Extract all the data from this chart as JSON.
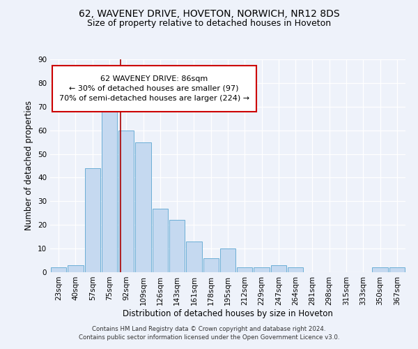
{
  "title1": "62, WAVENEY DRIVE, HOVETON, NORWICH, NR12 8DS",
  "title2": "Size of property relative to detached houses in Hoveton",
  "xlabel": "Distribution of detached houses by size in Hoveton",
  "ylabel": "Number of detached properties",
  "categories": [
    "23sqm",
    "40sqm",
    "57sqm",
    "75sqm",
    "92sqm",
    "109sqm",
    "126sqm",
    "143sqm",
    "161sqm",
    "178sqm",
    "195sqm",
    "212sqm",
    "229sqm",
    "247sqm",
    "264sqm",
    "281sqm",
    "298sqm",
    "315sqm",
    "333sqm",
    "350sqm",
    "367sqm"
  ],
  "values": [
    2,
    3,
    44,
    70,
    60,
    55,
    27,
    22,
    13,
    6,
    10,
    2,
    2,
    3,
    2,
    0,
    0,
    0,
    0,
    2,
    2
  ],
  "bar_color": "#c5d9f0",
  "bar_edge_color": "#6baed6",
  "vline_x": 3.65,
  "vline_color": "#aa0000",
  "annotation_text_line1": "62 WAVENEY DRIVE: 86sqm",
  "annotation_text_line2": "← 30% of detached houses are smaller (97)",
  "annotation_text_line3": "70% of semi-detached houses are larger (224) →",
  "annotation_box_color": "#cc0000",
  "annotation_bg_color": "#ffffff",
  "ylim": [
    0,
    90
  ],
  "yticks": [
    0,
    10,
    20,
    30,
    40,
    50,
    60,
    70,
    80,
    90
  ],
  "footer1": "Contains HM Land Registry data © Crown copyright and database right 2024.",
  "footer2": "Contains public sector information licensed under the Open Government Licence v3.0.",
  "bg_color": "#eef2fa",
  "plot_bg_color": "#eef2fa",
  "title1_fontsize": 10,
  "title2_fontsize": 9,
  "tick_fontsize": 7.5,
  "label_fontsize": 8.5,
  "annotation_fontsize": 8
}
